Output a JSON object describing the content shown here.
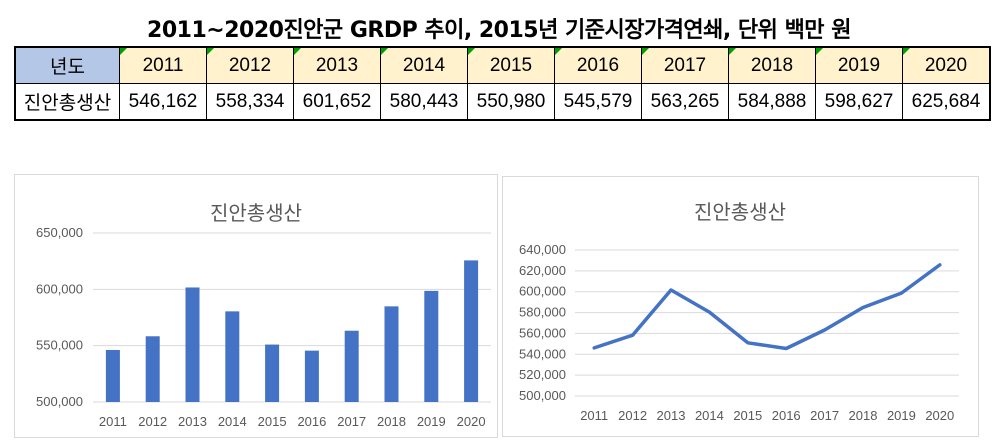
{
  "page_title": "2011~2020진안군 GRDP 추이, 2015년 기준시장가격연쇄, 단위 백만 원",
  "table": {
    "header_label": "년도",
    "years": [
      "2011",
      "2012",
      "2013",
      "2014",
      "2015",
      "2016",
      "2017",
      "2018",
      "2019",
      "2020"
    ],
    "row_label": "진안총생산",
    "values": [
      "546,162",
      "558,334",
      "601,652",
      "580,443",
      "550,980",
      "545,579",
      "563,265",
      "584,888",
      "598,627",
      "625,684"
    ]
  },
  "chart_data": [
    {
      "type": "bar",
      "title": "진안총생산",
      "categories": [
        "2011",
        "2012",
        "2013",
        "2014",
        "2015",
        "2016",
        "2017",
        "2018",
        "2019",
        "2020"
      ],
      "values": [
        546162,
        558334,
        601652,
        580443,
        550980,
        545579,
        563265,
        584888,
        598627,
        625684
      ],
      "ylim": [
        500000,
        650000
      ],
      "yticks": [
        "500,000",
        "550,000",
        "600,000",
        "650,000"
      ],
      "ytick_values": [
        500000,
        550000,
        600000,
        650000
      ],
      "color": "#4472c4",
      "grid": true,
      "xlabel": "",
      "ylabel": ""
    },
    {
      "type": "line",
      "title": "진안총생산",
      "categories": [
        "2011",
        "2012",
        "2013",
        "2014",
        "2015",
        "2016",
        "2017",
        "2018",
        "2019",
        "2020"
      ],
      "values": [
        546162,
        558334,
        601652,
        580443,
        550980,
        545579,
        563265,
        584888,
        598627,
        625684
      ],
      "ylim": [
        500000,
        640000
      ],
      "yticks": [
        "500,000",
        "520,000",
        "540,000",
        "560,000",
        "580,000",
        "600,000",
        "620,000",
        "640,000"
      ],
      "ytick_values": [
        500000,
        520000,
        540000,
        560000,
        580000,
        600000,
        620000,
        640000
      ],
      "color": "#4472c4",
      "grid": true,
      "xlabel": "",
      "ylabel": ""
    }
  ]
}
